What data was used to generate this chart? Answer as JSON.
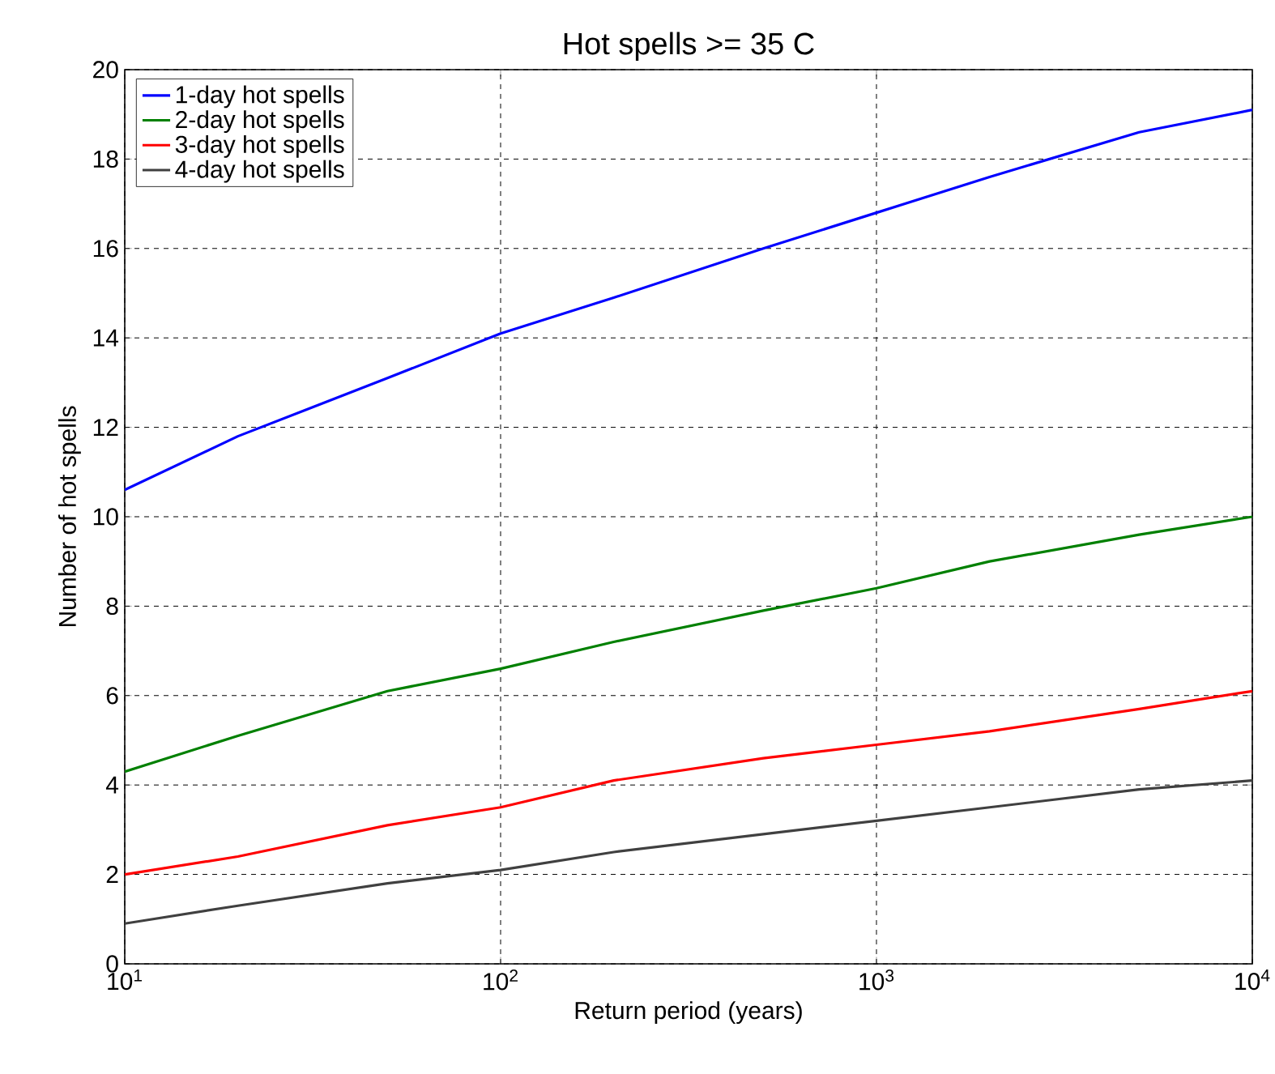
{
  "chart_data": {
    "type": "line",
    "title": "Hot spells >= 35 C",
    "xlabel": "Return period (years)",
    "ylabel": "Number of hot spells",
    "log": "x",
    "grid": true,
    "legend": "top left",
    "line_style": "solid",
    "marker": "none",
    "xlim": [
      10,
      10000
    ],
    "xticks": [
      {
        "value": 10,
        "label": "10$^{1}$"
      },
      {
        "value": 100,
        "label": "10$^{2}$"
      },
      {
        "value": 1000,
        "label": "10$^{3}$"
      },
      {
        "value": 10000,
        "label": "10$^{4}$"
      }
    ],
    "ylim": [
      0,
      20
    ],
    "yticks": [
      0,
      2,
      4,
      6,
      8,
      10,
      12,
      14,
      16,
      18,
      20
    ],
    "x": [
      10,
      20,
      50,
      100,
      200,
      500,
      1000,
      2000,
      5000,
      10000
    ],
    "series": [
      {
        "name": "1-day hot spells",
        "color": "#0000ff",
        "values": [
          10.6,
          11.8,
          13.1,
          14.1,
          14.9,
          16.0,
          16.8,
          17.6,
          18.6,
          19.1
        ]
      },
      {
        "name": "2-day hot spells",
        "color": "#008000",
        "values": [
          4.3,
          5.1,
          6.1,
          6.6,
          7.2,
          7.9,
          8.4,
          9.0,
          9.6,
          10.0
        ]
      },
      {
        "name": "3-day hot spells",
        "color": "#ff0000",
        "values": [
          2.0,
          2.4,
          3.1,
          3.5,
          4.1,
          4.6,
          4.9,
          5.2,
          5.7,
          6.1
        ]
      },
      {
        "name": "4-day hot spells",
        "color": "#404040",
        "values": [
          0.9,
          1.3,
          1.8,
          2.1,
          2.5,
          2.9,
          3.2,
          3.5,
          3.9,
          4.1
        ]
      }
    ]
  }
}
